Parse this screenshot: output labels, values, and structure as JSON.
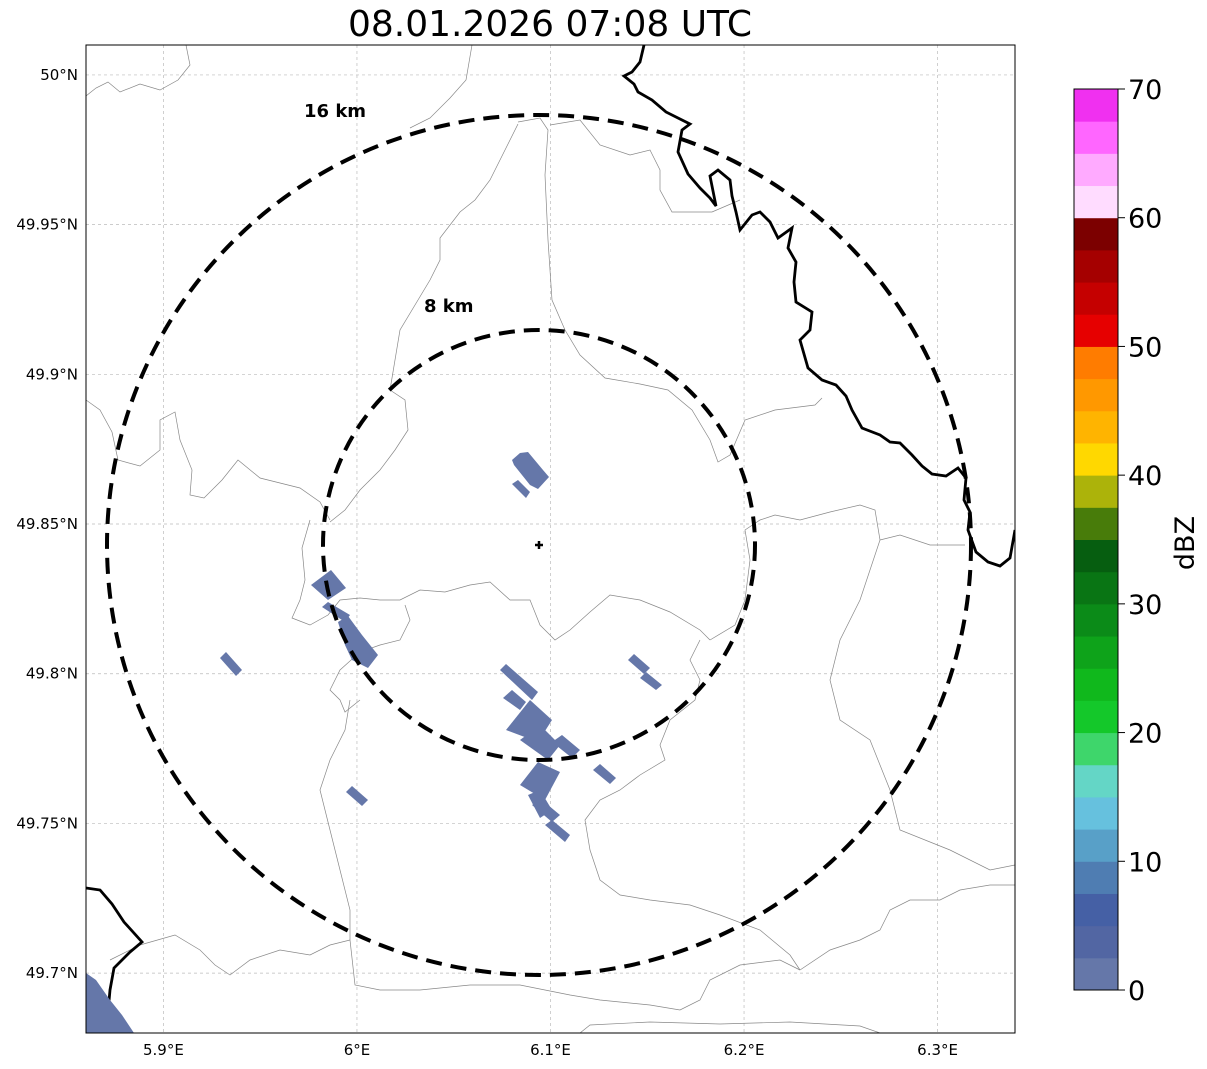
{
  "title": "08.01.2026 07:08 UTC",
  "map": {
    "lon_range": [
      5.86,
      6.34
    ],
    "lat_range": [
      49.68,
      50.01
    ],
    "radar_site": {
      "lon": 6.095,
      "lat": 49.844
    },
    "gridlines": true,
    "lon_ticks": [
      {
        "value": 5.9,
        "label": "5.9°E"
      },
      {
        "value": 6.0,
        "label": "6°E"
      },
      {
        "value": 6.1,
        "label": "6.1°E"
      },
      {
        "value": 6.2,
        "label": "6.2°E"
      },
      {
        "value": 6.3,
        "label": "6.3°E"
      }
    ],
    "lat_ticks": [
      {
        "value": 50.0,
        "label": "50°N"
      },
      {
        "value": 49.95,
        "label": "49.95°N"
      },
      {
        "value": 49.9,
        "label": "49.9°N"
      },
      {
        "value": 49.85,
        "label": "49.85°N"
      },
      {
        "value": 49.8,
        "label": "49.8°N"
      },
      {
        "value": 49.75,
        "label": "49.75°N"
      },
      {
        "value": 49.7,
        "label": "49.7°N"
      }
    ],
    "range_rings": [
      {
        "label": "16 km",
        "radius_km": 16
      },
      {
        "label": "8 km",
        "radius_km": 8
      }
    ],
    "echo_color": "#6577a9"
  },
  "colorbar": {
    "label": "dBZ",
    "min": 0,
    "max": 70,
    "step": 2.5,
    "colors": [
      "#6577a9",
      "#5266a3",
      "#4560a5",
      "#4f7db2",
      "#58a0c8",
      "#66c1de",
      "#64d6c6",
      "#3ed66b",
      "#14c82a",
      "#10b81c",
      "#0ea31a",
      "#0b8b18",
      "#097514",
      "#065e10",
      "#487c0a",
      "#acb30a",
      "#ffd800",
      "#ffb400",
      "#ff9800",
      "#ff7c00",
      "#e60000",
      "#c50000",
      "#a50000",
      "#7c0000",
      "#ffdcff",
      "#ffaaff",
      "#ff66ff",
      "#f030f0"
    ],
    "ticks": [
      {
        "value": 0,
        "label": "0"
      },
      {
        "value": 10,
        "label": "10"
      },
      {
        "value": 20,
        "label": "20"
      },
      {
        "value": 30,
        "label": "30"
      },
      {
        "value": 40,
        "label": "40"
      },
      {
        "value": 50,
        "label": "50"
      },
      {
        "value": 60,
        "label": "60"
      },
      {
        "value": 70,
        "label": "70"
      }
    ]
  }
}
